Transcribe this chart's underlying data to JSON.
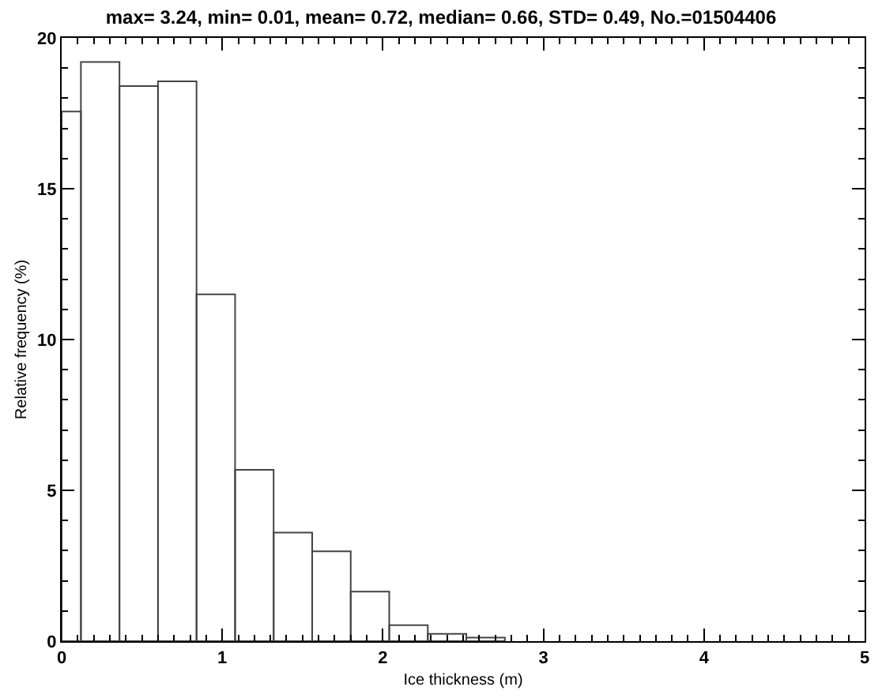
{
  "chart_data": {
    "type": "histogram",
    "title": "max= 3.24, min= 0.01, mean= 0.72, median= 0.66, STD= 0.49, No.=01504406",
    "xlabel": "Ice thickness (m)",
    "ylabel": "Relative frequency (%)",
    "bins": [
      0,
      0.12,
      0.36,
      0.6,
      0.84,
      1.08,
      1.32,
      1.56,
      1.8,
      2.04,
      2.28,
      2.52,
      2.76
    ],
    "values": [
      17.56,
      19.2,
      18.4,
      18.56,
      11.5,
      5.68,
      3.6,
      2.98,
      1.64,
      0.53,
      0.24,
      0.12
    ],
    "color": "#444444",
    "xlim": [
      0,
      5
    ],
    "xticks": [
      0,
      1,
      2,
      3,
      4,
      5
    ],
    "ylim": [
      0,
      20
    ],
    "yticks": [
      0,
      5,
      10,
      15,
      20
    ],
    "grid": false
  }
}
